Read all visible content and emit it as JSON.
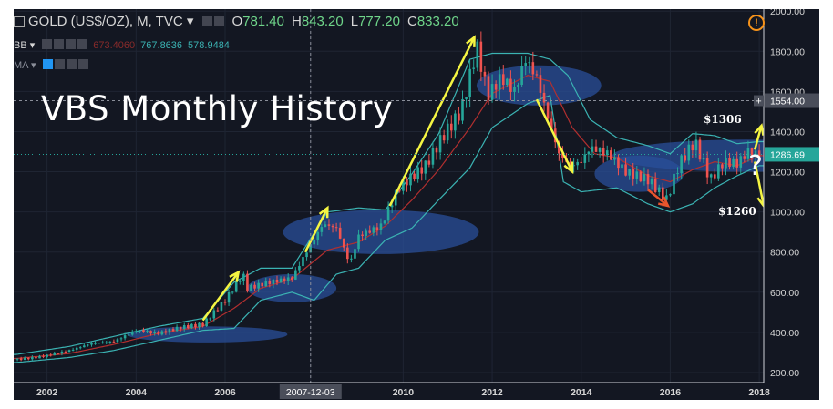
{
  "header": {
    "symbol": "GOLD (US$/OZ), M, TVC ▾",
    "o_label": "O",
    "o_value": "781.40",
    "h_label": "H",
    "h_value": "843.20",
    "l_label": "L",
    "l_value": "777.20",
    "c_label": "C",
    "c_value": "833.20",
    "bb_label": "BB ▾",
    "bb_values": [
      "673.4060",
      "767.8636",
      "578.9484"
    ],
    "ma_label": "MA ▾"
  },
  "overlay": {
    "title": "VBS Monthly History",
    "price_high": "$1306",
    "price_low": "$1260",
    "question": "?",
    "crosshair_date": "2007-12-03",
    "crosshair_price": "1554.00",
    "last_price": "1286.69"
  },
  "colors": {
    "background": "#131722",
    "up": "#26a69a",
    "down": "#ef5350",
    "bb": "#3bb3b3",
    "ma": "#b22f2f",
    "arrow": "#f5f542",
    "arrow_down": "#e8552d",
    "ellipse": "#2a4f9a",
    "last_price_bg": "#26a69a"
  },
  "chart_data": {
    "type": "candlestick",
    "title": "GOLD (US$/OZ), M, TVC",
    "x_ticks": [
      "2002",
      "2004",
      "2006",
      "2007-12-03",
      "2010",
      "2012",
      "2014",
      "2016",
      "2018"
    ],
    "x_tick_years": [
      2002,
      2004,
      2006,
      2007.92,
      2010,
      2012,
      2014,
      2016,
      2018
    ],
    "y_ticks": [
      "200.00",
      "400.00",
      "600.00",
      "800.00",
      "1000.00",
      "1200.00",
      "1400.00",
      "1600.00",
      "1800.00",
      "2000.00"
    ],
    "ylim": [
      150,
      2010
    ],
    "xlim": [
      2001.25,
      2018.1
    ],
    "close_path": [
      [
        2001.3,
        265
      ],
      [
        2001.75,
        275
      ],
      [
        2002.0,
        285
      ],
      [
        2002.5,
        310
      ],
      [
        2003.0,
        345
      ],
      [
        2003.5,
        355
      ],
      [
        2004.0,
        410
      ],
      [
        2004.5,
        395
      ],
      [
        2005.0,
        425
      ],
      [
        2005.5,
        440
      ],
      [
        2006.0,
        560
      ],
      [
        2006.4,
        690
      ],
      [
        2006.5,
        620
      ],
      [
        2007.0,
        650
      ],
      [
        2007.5,
        670
      ],
      [
        2007.8,
        790
      ],
      [
        2008.2,
        940
      ],
      [
        2008.5,
        920
      ],
      [
        2008.8,
        740
      ],
      [
        2009.0,
        880
      ],
      [
        2009.5,
        930
      ],
      [
        2009.9,
        1120
      ],
      [
        2010.5,
        1230
      ],
      [
        2010.9,
        1380
      ],
      [
        2011.3,
        1500
      ],
      [
        2011.66,
        1820
      ],
      [
        2011.9,
        1580
      ],
      [
        2012.2,
        1670
      ],
      [
        2012.5,
        1600
      ],
      [
        2012.75,
        1760
      ],
      [
        2013.0,
        1670
      ],
      [
        2013.25,
        1470
      ],
      [
        2013.5,
        1290
      ],
      [
        2013.75,
        1230
      ],
      [
        2014.0,
        1250
      ],
      [
        2014.2,
        1320
      ],
      [
        2014.6,
        1290
      ],
      [
        2015.0,
        1200
      ],
      [
        2015.5,
        1160
      ],
      [
        2015.92,
        1060
      ],
      [
        2016.2,
        1240
      ],
      [
        2016.55,
        1350
      ],
      [
        2016.9,
        1160
      ],
      [
        2017.2,
        1250
      ],
      [
        2017.5,
        1240
      ],
      [
        2017.75,
        1300
      ],
      [
        2018.0,
        1286.69
      ]
    ],
    "bb_upper": [
      [
        2001.3,
        290
      ],
      [
        2002.5,
        330
      ],
      [
        2003.5,
        380
      ],
      [
        2004.5,
        430
      ],
      [
        2005.5,
        470
      ],
      [
        2006.2,
        650
      ],
      [
        2006.8,
        720
      ],
      [
        2007.5,
        720
      ],
      [
        2008.3,
        1000
      ],
      [
        2009.0,
        1020
      ],
      [
        2009.6,
        1010
      ],
      [
        2010.2,
        1190
      ],
      [
        2010.8,
        1390
      ],
      [
        2011.5,
        1760
      ],
      [
        2012.0,
        1790
      ],
      [
        2012.8,
        1790
      ],
      [
        2013.3,
        1760
      ],
      [
        2013.7,
        1680
      ],
      [
        2014.2,
        1460
      ],
      [
        2014.8,
        1370
      ],
      [
        2015.5,
        1330
      ],
      [
        2016.0,
        1290
      ],
      [
        2016.5,
        1390
      ],
      [
        2017.0,
        1380
      ],
      [
        2017.5,
        1340
      ],
      [
        2018.0,
        1350
      ]
    ],
    "bb_lower": [
      [
        2001.3,
        250
      ],
      [
        2002.5,
        275
      ],
      [
        2003.5,
        310
      ],
      [
        2004.5,
        360
      ],
      [
        2005.5,
        410
      ],
      [
        2006.2,
        420
      ],
      [
        2006.8,
        560
      ],
      [
        2007.5,
        600
      ],
      [
        2008.0,
        560
      ],
      [
        2008.5,
        690
      ],
      [
        2009.0,
        720
      ],
      [
        2009.6,
        860
      ],
      [
        2010.2,
        920
      ],
      [
        2010.8,
        1060
      ],
      [
        2011.5,
        1220
      ],
      [
        2012.0,
        1420
      ],
      [
        2012.8,
        1540
      ],
      [
        2013.3,
        1580
      ],
      [
        2013.6,
        1150
      ],
      [
        2014.0,
        1100
      ],
      [
        2014.8,
        1120
      ],
      [
        2015.5,
        1040
      ],
      [
        2016.0,
        1000
      ],
      [
        2016.5,
        1040
      ],
      [
        2017.0,
        1120
      ],
      [
        2017.5,
        1180
      ],
      [
        2018.0,
        1230
      ]
    ],
    "ma": [
      [
        2001.3,
        270
      ],
      [
        2002.5,
        295
      ],
      [
        2003.5,
        340
      ],
      [
        2004.5,
        395
      ],
      [
        2005.5,
        430
      ],
      [
        2006.2,
        520
      ],
      [
        2006.8,
        620
      ],
      [
        2007.5,
        665
      ],
      [
        2008.3,
        810
      ],
      [
        2009.0,
        850
      ],
      [
        2009.6,
        930
      ],
      [
        2010.2,
        1060
      ],
      [
        2010.8,
        1210
      ],
      [
        2011.5,
        1420
      ],
      [
        2012.0,
        1590
      ],
      [
        2012.8,
        1680
      ],
      [
        2013.3,
        1650
      ],
      [
        2013.8,
        1420
      ],
      [
        2014.3,
        1290
      ],
      [
        2014.8,
        1270
      ],
      [
        2015.5,
        1180
      ],
      [
        2016.0,
        1150
      ],
      [
        2016.5,
        1210
      ],
      [
        2017.0,
        1250
      ],
      [
        2017.5,
        1230
      ],
      [
        2018.0,
        1280
      ]
    ]
  }
}
